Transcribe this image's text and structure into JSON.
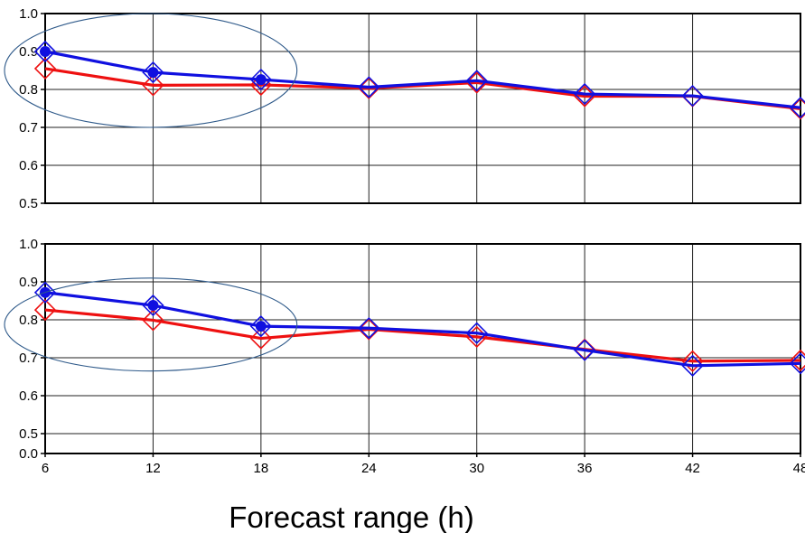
{
  "chart_data": [
    {
      "type": "line",
      "title": "",
      "xlabel": "",
      "ylabel": "",
      "x": [
        6,
        12,
        18,
        24,
        30,
        36,
        42,
        48
      ],
      "xlim": [
        6,
        48
      ],
      "ylim": [
        0.5,
        1.0
      ],
      "y_ticks": [
        "0.5",
        "0.6",
        "0.7",
        "0.8",
        "0.9",
        "1.0"
      ],
      "x_ticks": [],
      "grid": true,
      "series": [
        {
          "color": "#1010e0",
          "marker": "diamond",
          "filled_dot_points": [
            0,
            1,
            2
          ],
          "values": [
            0.9,
            0.845,
            0.826,
            0.806,
            0.823,
            0.788,
            0.783,
            0.752
          ]
        },
        {
          "color": "#ee1010",
          "marker": "diamond",
          "values": [
            0.855,
            0.811,
            0.812,
            0.803,
            0.818,
            0.782,
            0.782,
            0.749
          ]
        }
      ],
      "annotation": {
        "shape": "ellipse",
        "x_range": [
          6,
          20
        ],
        "y_range": [
          0.7,
          1.0
        ],
        "color": "#2f5a8a"
      }
    },
    {
      "type": "line",
      "title": "",
      "xlabel": "Forecast range (h)",
      "ylabel": "",
      "x": [
        6,
        12,
        18,
        24,
        30,
        36,
        42,
        48
      ],
      "xlim": [
        6,
        48
      ],
      "ylim": [
        0.0,
        1.0
      ],
      "broken_axis": {
        "from": 0.0,
        "to": 0.5
      },
      "y_ticks": [
        "0.0",
        "0.5",
        "0.6",
        "0.7",
        "0.8",
        "0.9",
        "1.0"
      ],
      "x_ticks": [
        "6",
        "12",
        "18",
        "24",
        "30",
        "36",
        "42",
        "48"
      ],
      "grid": true,
      "series": [
        {
          "color": "#1010e0",
          "marker": "diamond",
          "filled_dot_points": [
            0,
            1,
            2
          ],
          "values": [
            0.872,
            0.838,
            0.783,
            0.778,
            0.765,
            0.72,
            0.679,
            0.685
          ]
        },
        {
          "color": "#ee1010",
          "marker": "diamond",
          "values": [
            0.826,
            0.799,
            0.751,
            0.775,
            0.755,
            0.722,
            0.691,
            0.693
          ]
        }
      ],
      "annotation": {
        "shape": "ellipse",
        "x_range": [
          6,
          20
        ],
        "y_range": [
          0.665,
          0.91
        ],
        "color": "#2f5a8a"
      }
    }
  ]
}
